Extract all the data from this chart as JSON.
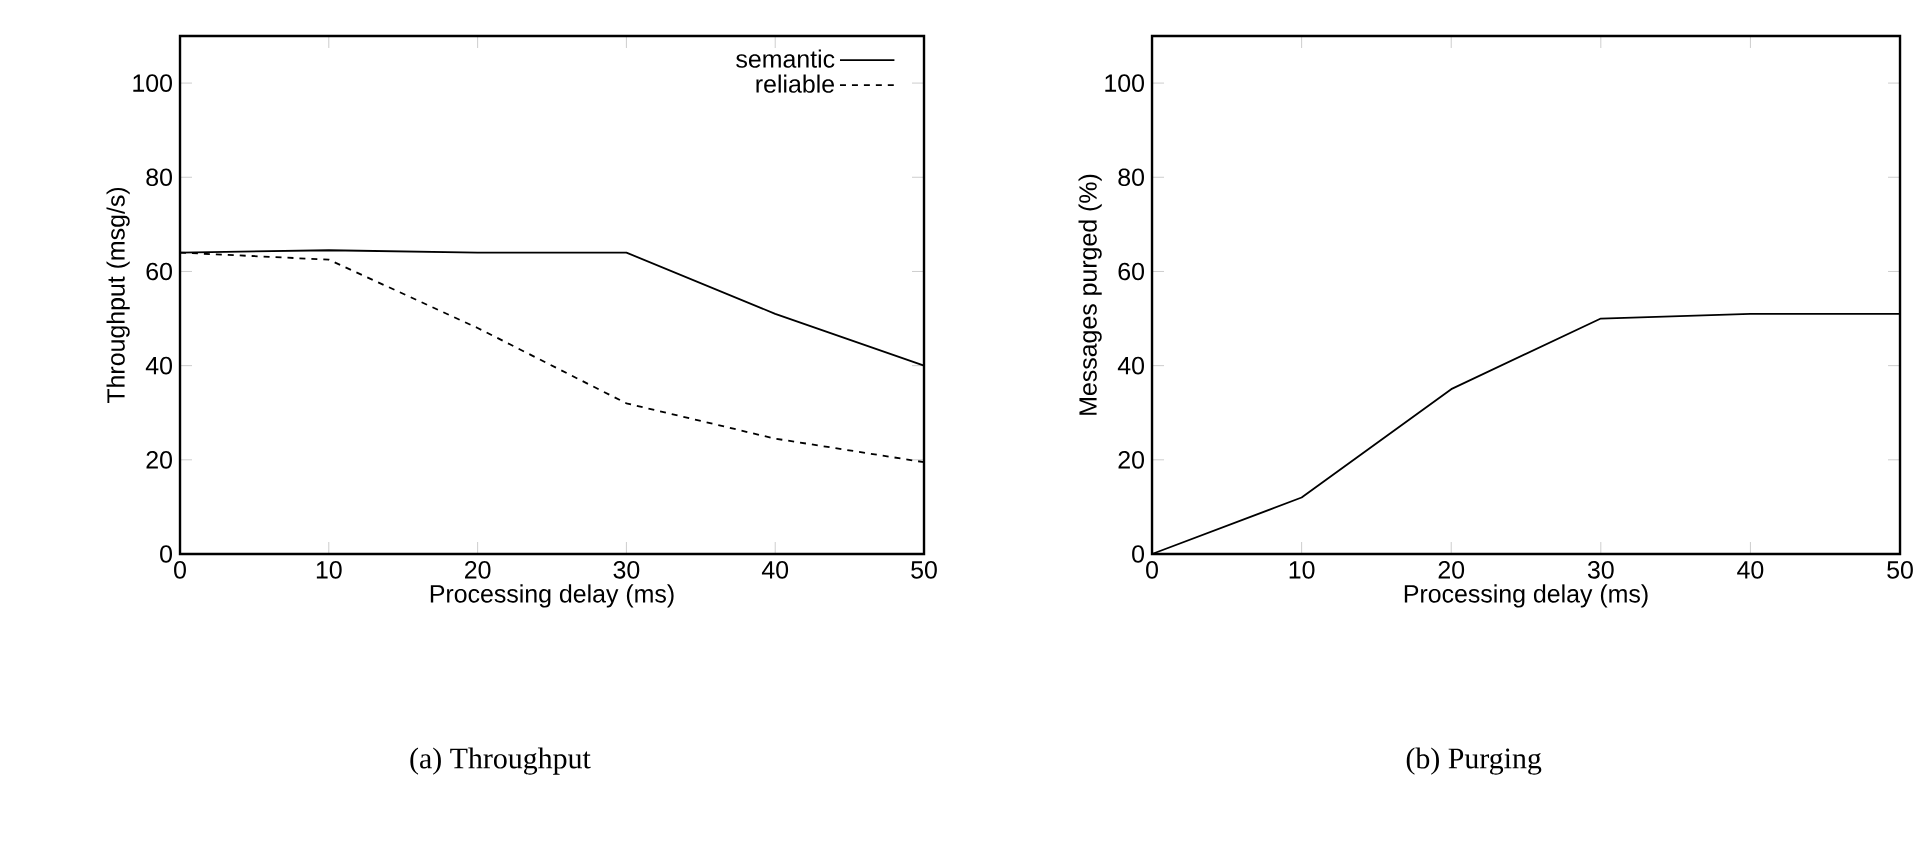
{
  "chart_data": [
    {
      "type": "line",
      "xlabel": "Processing delay (ms)",
      "ylabel": "Throughput (msg/s)",
      "annotations": [
        "(a) Throughput"
      ],
      "x": [
        0,
        10,
        20,
        30,
        40,
        50
      ],
      "xlim": [
        0,
        50
      ],
      "xticks": [
        0,
        10,
        20,
        30,
        40,
        50
      ],
      "ylim": [
        0,
        110
      ],
      "yticks": [
        0,
        20,
        40,
        60,
        80,
        100
      ],
      "legend": "top right",
      "marker": "none",
      "series": [
        {
          "name": "semantic",
          "color": "#000000",
          "line_style": "solid",
          "values": [
            64,
            64.5,
            64,
            64,
            51,
            40
          ]
        },
        {
          "name": "reliable",
          "color": "#000000",
          "line_style": "dashed",
          "values": [
            64,
            62.5,
            48,
            32,
            24.5,
            19.5
          ]
        }
      ]
    },
    {
      "type": "line",
      "xlabel": "Processing delay (ms)",
      "ylabel": "Messages purged (%)",
      "annotations": [
        "(b) Purging"
      ],
      "x": [
        0,
        10,
        20,
        30,
        40,
        50
      ],
      "xlim": [
        0,
        50
      ],
      "xticks": [
        0,
        10,
        20,
        30,
        40,
        50
      ],
      "ylim": [
        0,
        110
      ],
      "yticks": [
        0,
        20,
        40,
        60,
        80,
        100
      ],
      "marker": "none",
      "series": [
        {
          "color": "#000000",
          "line_style": "solid",
          "values": [
            0,
            12,
            35,
            50,
            51,
            51
          ]
        }
      ]
    }
  ]
}
